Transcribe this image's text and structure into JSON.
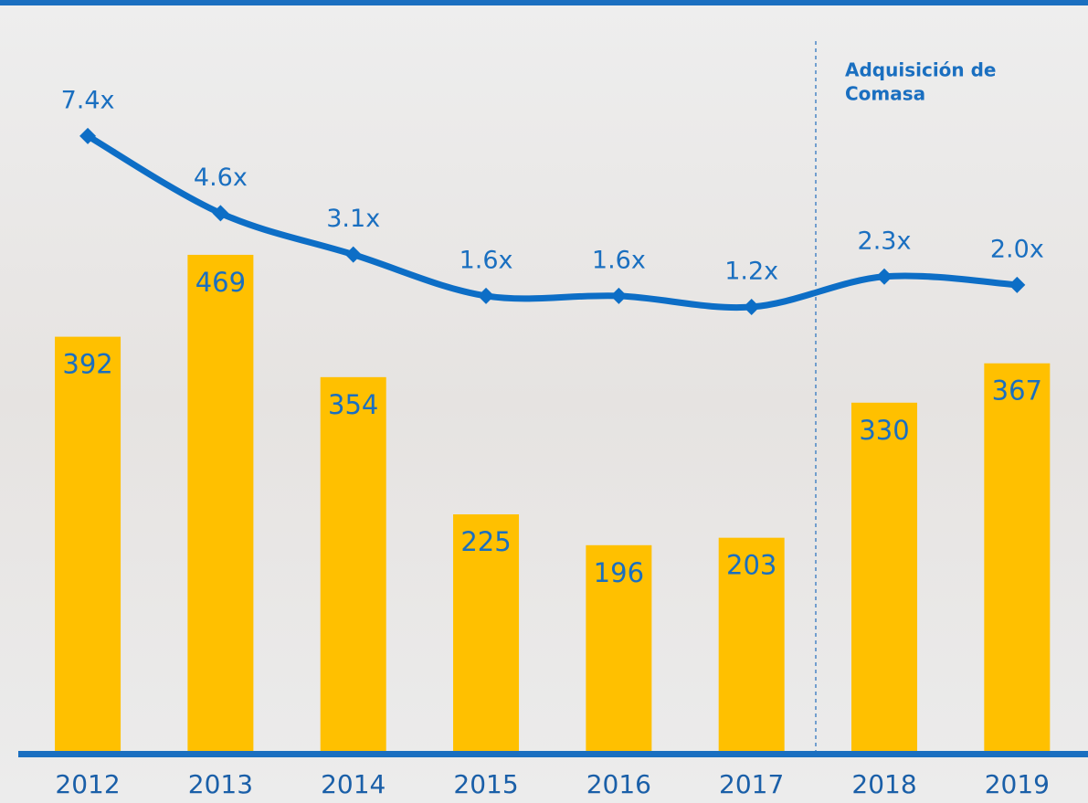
{
  "chart_data": {
    "type": "bar",
    "categories": [
      "2012",
      "2013",
      "2014",
      "2015",
      "2016",
      "2017",
      "2018",
      "2019"
    ],
    "series": [
      {
        "type": "bar",
        "color": "#ffc000",
        "values": [
          392,
          469,
          354,
          225,
          196,
          203,
          330,
          367
        ]
      },
      {
        "type": "line",
        "axis": "y2",
        "color": "#0d6ec6",
        "values": [
          7.4,
          4.6,
          3.1,
          1.6,
          1.6,
          1.2,
          2.3,
          2.0
        ],
        "value_labels": [
          "7.4x",
          "4.6x",
          "3.1x",
          "1.6x",
          "1.6x",
          "1.2x",
          "2.3x",
          "2.0x"
        ]
      }
    ],
    "ylim": [
      0,
      700
    ],
    "y2lim": [
      -15,
      12
    ],
    "annotation": [
      "Adquisición de",
      "Comasa"
    ]
  }
}
